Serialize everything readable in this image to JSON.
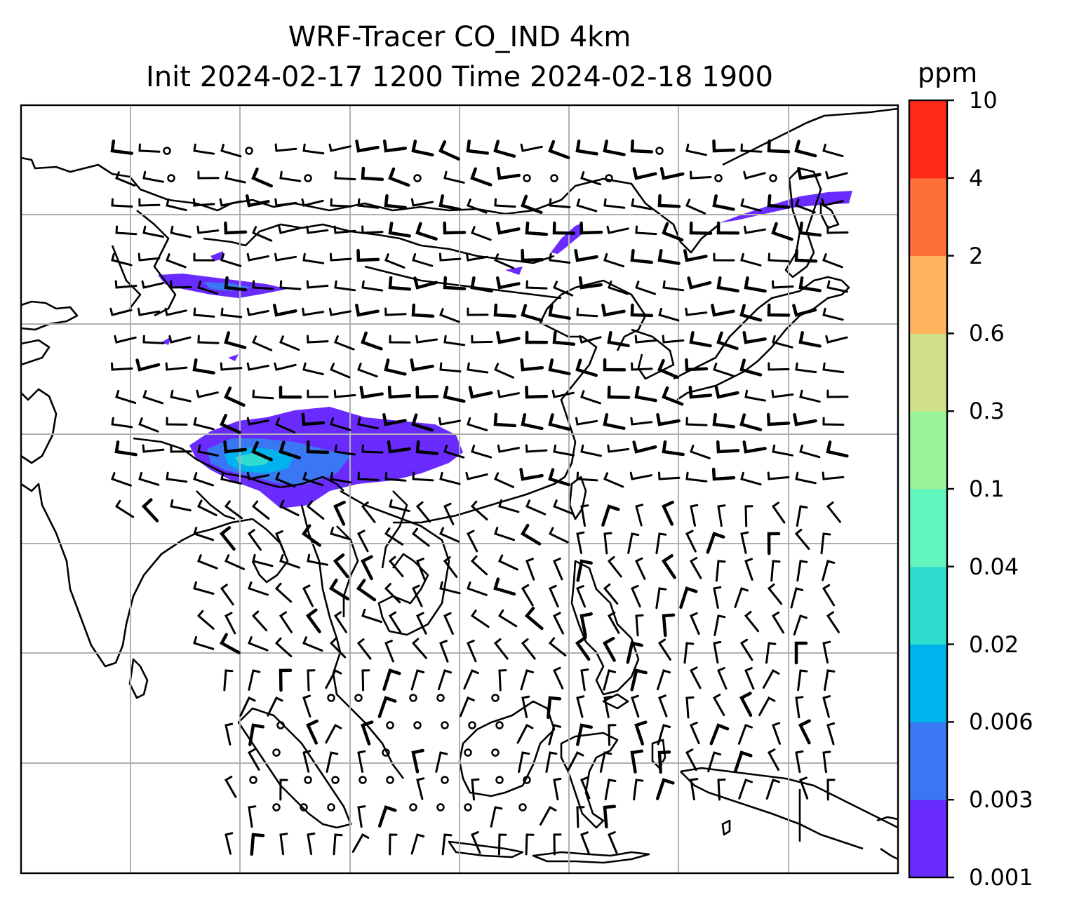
{
  "title": {
    "line1": "WRF-Tracer CO_IND 4km",
    "line2": "Init 2024-02-17 1200 Time 2024-02-18 1900"
  },
  "colorbar": {
    "unit": "ppm",
    "levels": [
      "0.001",
      "0.003",
      "0.006",
      "0.02",
      "0.04",
      "0.1",
      "0.3",
      "0.6",
      "2",
      "4",
      "10"
    ],
    "colors": [
      "#6a2bff",
      "#3a77f3",
      "#00b2ee",
      "#2fdccf",
      "#62f5bd",
      "#9af59a",
      "#cfe089",
      "#ffb460",
      "#ff7037",
      "#ff2a17"
    ]
  },
  "map": {
    "coastline_color": "#000000",
    "gridline_color": "#b0b0b0"
  }
}
